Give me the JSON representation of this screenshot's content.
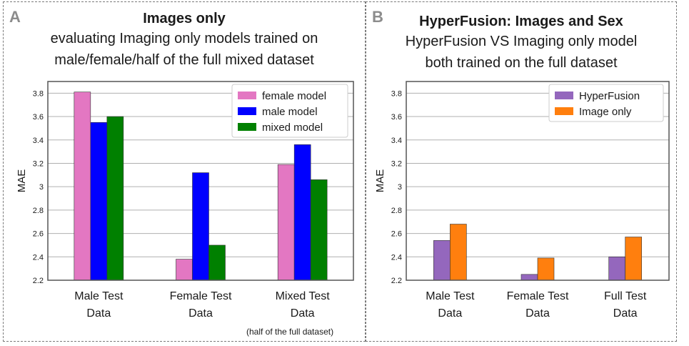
{
  "chart_data": [
    {
      "panel_letter": "A",
      "type": "bar",
      "title": "Images only",
      "subtitle_lines": [
        "evaluating Imaging only models trained on",
        "male/female/half of the full mixed dataset"
      ],
      "ylabel": "MAE",
      "ylim": [
        2.2,
        3.9
      ],
      "yticks": [
        "2.2",
        "2.4",
        "2.6",
        "2.8",
        "3",
        "3.2",
        "3.4",
        "3.6",
        "3.8"
      ],
      "grid": true,
      "legend_position": "top-right",
      "categories": [
        [
          "Male Test",
          "Data"
        ],
        [
          "Female Test",
          "Data"
        ],
        [
          "Mixed Test",
          "Data"
        ]
      ],
      "note": "(half of the full dataset)",
      "series": [
        {
          "name": "female model",
          "color": "#e377c2",
          "values": [
            3.81,
            2.38,
            3.19
          ]
        },
        {
          "name": "male model",
          "color": "#0000ff",
          "values": [
            3.55,
            3.12,
            3.36
          ]
        },
        {
          "name": "mixed model",
          "color": "#008000",
          "values": [
            3.6,
            2.5,
            3.06
          ]
        }
      ]
    },
    {
      "panel_letter": "B",
      "type": "bar",
      "title": "HyperFusion: Images and Sex",
      "subtitle_lines": [
        "HyperFusion VS Imaging only model",
        "both trained on the full dataset"
      ],
      "ylabel": "MAE",
      "ylim": [
        2.2,
        3.9
      ],
      "yticks": [
        "2.2",
        "2.4",
        "2.6",
        "2.8",
        "3",
        "3.2",
        "3.4",
        "3.6",
        "3.8"
      ],
      "grid": true,
      "legend_position": "top-right",
      "categories": [
        [
          "Male Test",
          "Data"
        ],
        [
          "Female Test",
          "Data"
        ],
        [
          "Full Test",
          "Data"
        ]
      ],
      "series": [
        {
          "name": "HyperFusion",
          "color": "#9467bd",
          "values": [
            2.54,
            2.25,
            2.4
          ]
        },
        {
          "name": "Image only",
          "color": "#ff7f0e",
          "values": [
            2.68,
            2.39,
            2.57
          ]
        }
      ]
    }
  ]
}
